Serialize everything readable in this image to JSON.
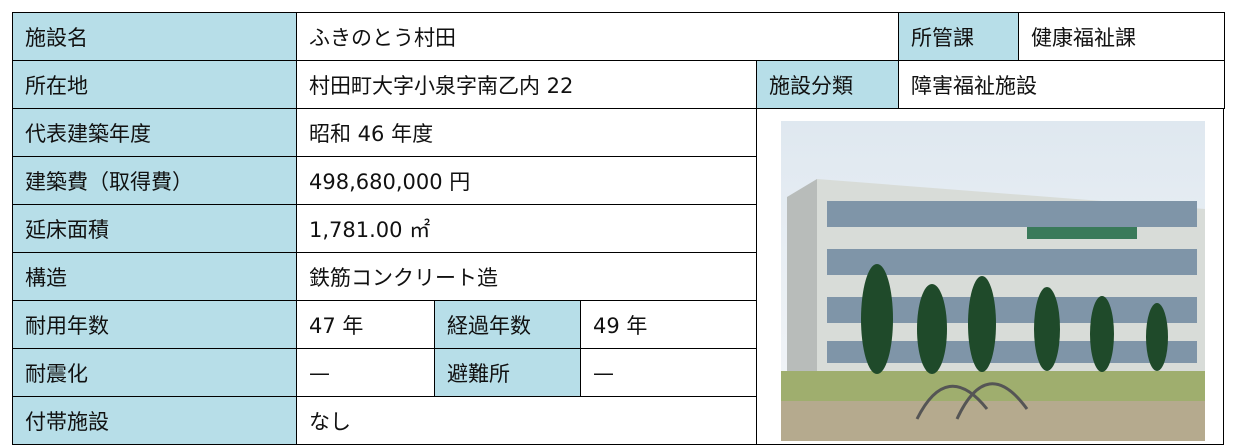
{
  "table": {
    "rows": [
      [
        "施設名",
        "ふきのとう村田",
        "所管課",
        "健康福祉課"
      ],
      [
        "所在地",
        "村田町大字小泉字南乙内 22",
        "施設分類",
        "障害福祉施設"
      ],
      [
        "代表建築年度",
        "昭和 46 年度"
      ],
      [
        "建築費（取得費）",
        "498,680,000 円"
      ],
      [
        "延床面積",
        "1,781.00 ㎡"
      ],
      [
        "構造",
        "鉄筋コンクリート造"
      ],
      [
        "耐用年数",
        "47 年",
        "経過年数",
        "49 年"
      ],
      [
        "耐震化",
        "—",
        "避難所",
        "—"
      ],
      [
        "付帯施設",
        "なし"
      ]
    ]
  }
}
